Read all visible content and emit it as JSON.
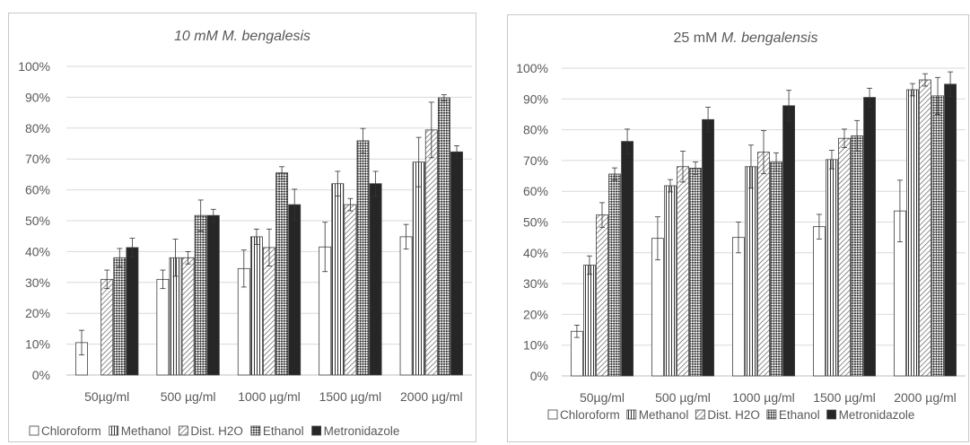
{
  "colors": {
    "border": "#c8c8c8",
    "grid": "#d9d9d9",
    "axis": "#bfbfbf",
    "text": "#595959",
    "bar_outline": "#404040",
    "solid": "#262626"
  },
  "chart_data": [
    {
      "type": "bar",
      "title": "10 mM M. bengalesis",
      "title_style": "italic",
      "categories": [
        "50µg/ml",
        "500 µg/ml",
        "1000 µg/ml",
        "1500 µg/ml",
        "2000 µg/ml"
      ],
      "ylim": [
        0,
        1
      ],
      "yticks": [
        0,
        0.1,
        0.2,
        0.3,
        0.4,
        0.5,
        0.6,
        0.7,
        0.8,
        0.9,
        1.0
      ],
      "ytick_labels": [
        "0%",
        "10%",
        "20%",
        "30%",
        "40%",
        "50%",
        "60%",
        "70%",
        "80%",
        "90%",
        "100%"
      ],
      "grid": true,
      "legend_position": "bottom",
      "series": [
        {
          "name": "Chloroform",
          "pattern": "empty",
          "values": [
            0.105,
            0.31,
            0.345,
            0.415,
            0.448
          ],
          "errors": [
            0.04,
            0.03,
            0.06,
            0.08,
            0.04
          ]
        },
        {
          "name": "Methanol",
          "pattern": "vertical",
          "values": [
            0,
            0.38,
            0.448,
            0.62,
            0.69
          ],
          "errors": [
            0,
            0.06,
            0.025,
            0.04,
            0.08
          ]
        },
        {
          "name": "Dist. H2O",
          "pattern": "diagonal",
          "values": [
            0.31,
            0.38,
            0.413,
            0.552,
            0.794
          ],
          "errors": [
            0.03,
            0.02,
            0.06,
            0.02,
            0.09
          ]
        },
        {
          "name": "Ethanol",
          "pattern": "crosshatch",
          "values": [
            0.38,
            0.517,
            0.655,
            0.759,
            0.898
          ],
          "errors": [
            0.03,
            0.05,
            0.02,
            0.04,
            0.01
          ]
        },
        {
          "name": "Metronidazole",
          "pattern": "solid",
          "values": [
            0.413,
            0.517,
            0.552,
            0.62,
            0.723
          ],
          "errors": [
            0.03,
            0.02,
            0.05,
            0.04,
            0.02
          ]
        }
      ]
    },
    {
      "type": "bar",
      "title_prefix": "25 mM ",
      "title_italic": "M. bengalensis",
      "categories": [
        "50µg/ml",
        "500 µg/ml",
        "1000 µg/ml",
        "1500 µg/ml",
        "2000 µg/ml"
      ],
      "ylim": [
        0,
        1
      ],
      "yticks": [
        0,
        0.1,
        0.2,
        0.3,
        0.4,
        0.5,
        0.6,
        0.7,
        0.8,
        0.9,
        1.0
      ],
      "ytick_labels": [
        "0%",
        "10%",
        "20%",
        "30%",
        "40%",
        "50%",
        "60%",
        "70%",
        "80%",
        "90%",
        "100%"
      ],
      "grid": true,
      "legend_position": "bottom",
      "series": [
        {
          "name": "Chloroform",
          "pattern": "empty",
          "values": [
            0.145,
            0.447,
            0.45,
            0.485,
            0.536
          ],
          "errors": [
            0.02,
            0.07,
            0.05,
            0.04,
            0.1
          ]
        },
        {
          "name": "Methanol",
          "pattern": "vertical",
          "values": [
            0.36,
            0.618,
            0.68,
            0.703,
            0.93
          ],
          "errors": [
            0.03,
            0.02,
            0.07,
            0.03,
            0.02
          ]
        },
        {
          "name": "Dist. H2O",
          "pattern": "diagonal",
          "values": [
            0.523,
            0.68,
            0.727,
            0.772,
            0.962
          ],
          "errors": [
            0.04,
            0.05,
            0.07,
            0.03,
            0.02
          ]
        },
        {
          "name": "Ethanol",
          "pattern": "crosshatch",
          "values": [
            0.656,
            0.675,
            0.695,
            0.78,
            0.91
          ],
          "errors": [
            0.02,
            0.02,
            0.03,
            0.05,
            0.06
          ]
        },
        {
          "name": "Metronidazole",
          "pattern": "solid",
          "values": [
            0.762,
            0.833,
            0.878,
            0.905,
            0.948
          ],
          "errors": [
            0.04,
            0.04,
            0.05,
            0.03,
            0.04
          ]
        }
      ]
    }
  ]
}
